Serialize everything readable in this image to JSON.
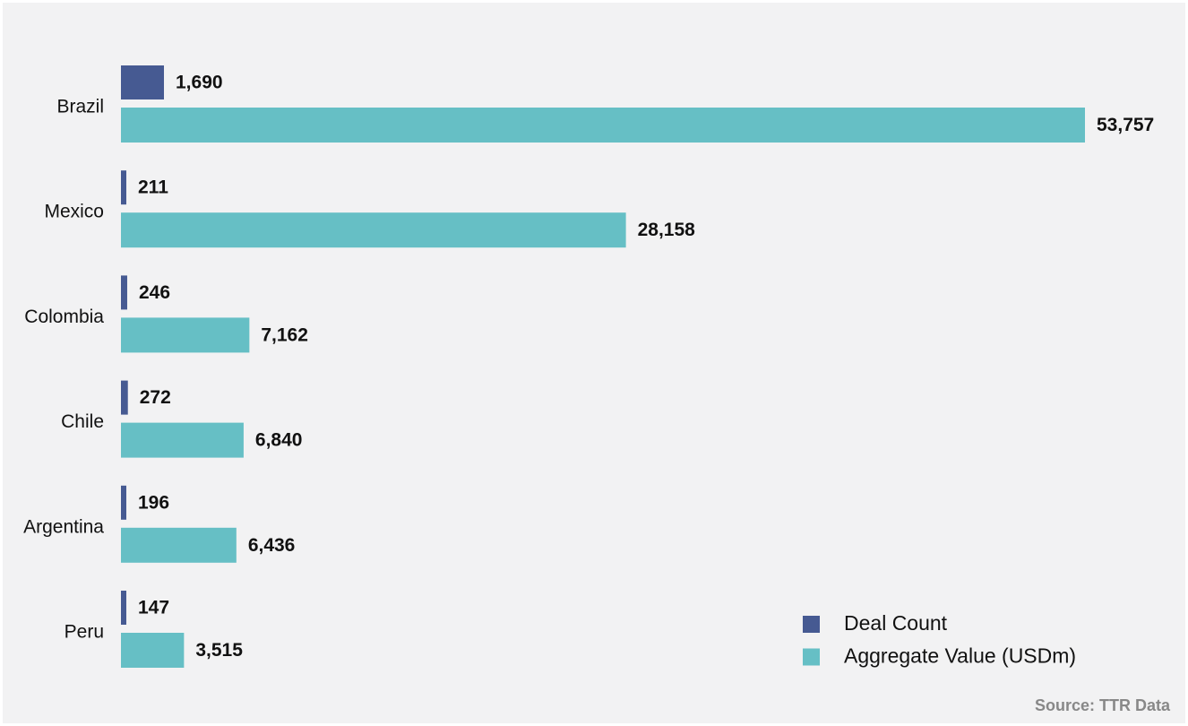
{
  "chart_data": {
    "type": "bar",
    "orientation": "horizontal",
    "categories": [
      "Brazil",
      "Mexico",
      "Colombia",
      "Chile",
      "Argentina",
      "Peru"
    ],
    "series": [
      {
        "name": "Deal Count",
        "values": [
          1690,
          211,
          246,
          272,
          196,
          147
        ],
        "labels": [
          "1,690",
          "211",
          "246",
          "272",
          "196",
          "147"
        ],
        "color": "#465a92"
      },
      {
        "name": "Aggregate Value (USDm)",
        "values": [
          53757,
          28158,
          7162,
          6840,
          6436,
          3515
        ],
        "labels": [
          "53,757",
          "28,158",
          "7,162",
          "6,840",
          "6,436",
          "3,515"
        ],
        "color": "#66bfc5"
      }
    ],
    "title": "",
    "xlabel": "",
    "ylabel": "",
    "legend_position": "bottom-right",
    "grid": false
  },
  "source": "Source: TTR Data",
  "colors": {
    "background": "#f2f2f3",
    "deal_count": "#465a92",
    "aggregate_value": "#66bfc5"
  }
}
